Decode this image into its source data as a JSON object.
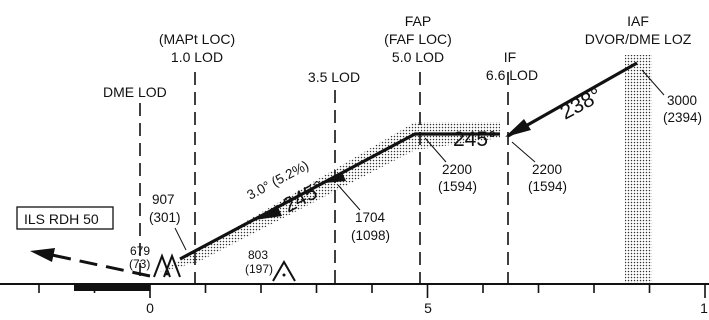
{
  "fixes": {
    "dme": {
      "name": "DME LOD"
    },
    "mapt": {
      "line1": "(MAPt LOC)",
      "line2": "1.0 LOD"
    },
    "sd35": {
      "name": "3.5 LOD"
    },
    "fap": {
      "line1": "FAP",
      "line2": "(FAF LOC)",
      "line3": "5.0 LOD"
    },
    "if": {
      "line1": "IF",
      "line2": "6.6 LOD"
    },
    "iaf": {
      "line1": "IAF",
      "line2": "DVOR/DME LOZ"
    }
  },
  "altitudes": {
    "iaf": {
      "msl": "3000",
      "height": "(2394)"
    },
    "if": {
      "msl": "2200",
      "height": "(1594)"
    },
    "fap": {
      "msl": "2200",
      "height": "(1594)"
    },
    "sd35": {
      "msl": "1704",
      "height": "(1098)"
    },
    "mapt": {
      "msl": "907",
      "height": "(301)"
    },
    "threshold": {
      "msl": "679",
      "height": "(73)"
    },
    "obstacle": {
      "msl": "803",
      "height": "(197)"
    }
  },
  "courses": {
    "arrival": "238°",
    "intermediate": "245°",
    "final": "245°"
  },
  "glidepath": "3.0° (5.2%)",
  "rdh_label": "ILS RDH 50",
  "distance_scale": {
    "unit": "NM",
    "labels": [
      "0",
      "5",
      "1"
    ],
    "ticks": [
      -2,
      -1,
      0,
      1,
      2,
      3,
      4,
      5,
      6,
      7,
      8,
      9,
      10
    ]
  }
}
